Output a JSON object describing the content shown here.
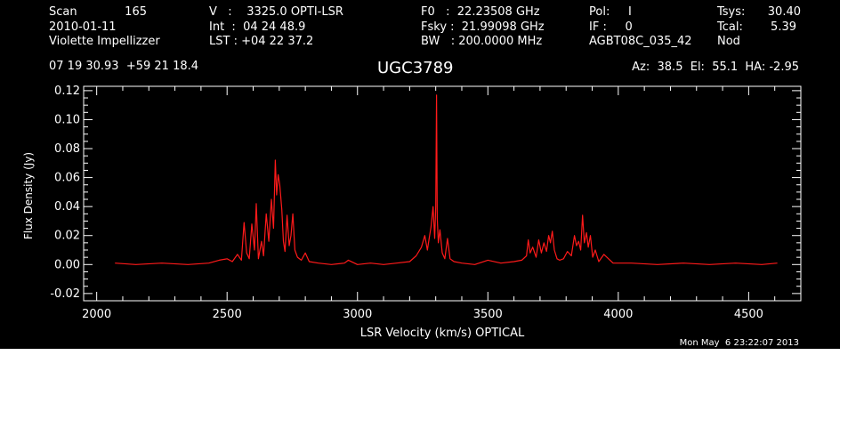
{
  "header": {
    "scan_label": "Scan",
    "scan_value": "165",
    "date": "2010-01-11",
    "observer": "Violette Impellizzer",
    "coords": "07 19 30.93  +59 21 18.4",
    "v_line": "V   :    3325.0 OPTI-LSR",
    "int_line": "Int  :  04 24 48.9",
    "lst_line": "LST : +04 22 37.2",
    "f0_line": "F0   :  22.23508 GHz",
    "fsky_line": "Fsky :  21.99098 GHz",
    "bw_line": "BW   : 200.0000 MHz",
    "pol_line": "Pol:     I",
    "if_line": "IF :     0",
    "project": "AGBT08C_035_42",
    "tsys_label": "Tsys:",
    "tsys_value": "30.40",
    "tcal_label": "Tcal:",
    "tcal_value": "5.39",
    "nod": "Nod",
    "source": "UGC3789",
    "pointing": "Az:  38.5  El:  55.1  HA: -2.95",
    "timestamp": "Mon May  6 23:22:07 2013"
  },
  "colors": {
    "background": "#000000",
    "foreground": "#ffffff",
    "trace": "#ff1a1a"
  },
  "chart_data": {
    "type": "line",
    "title": "UGC3789",
    "xlabel": "LSR Velocity (km/s) OPTICAL",
    "ylabel": "Flux Density (Jy)",
    "xlim": [
      1950,
      4700
    ],
    "ylim": [
      -0.025,
      0.123
    ],
    "xticks": [
      2000,
      2500,
      3000,
      3500,
      4000,
      4500
    ],
    "xtick_labels": [
      "2000",
      "2500",
      "3000",
      "3500",
      "4000",
      "4500"
    ],
    "yticks": [
      -0.02,
      0.0,
      0.02,
      0.04,
      0.06,
      0.08,
      0.1,
      0.12
    ],
    "ytick_labels": [
      "-0.02",
      "0.00",
      "0.02",
      "0.04",
      "0.06",
      "0.08",
      "0.10",
      "0.12"
    ],
    "grid": false,
    "series": [
      {
        "x": [
          2070,
          2150,
          2250,
          2350,
          2430,
          2470,
          2500,
          2520,
          2540,
          2555,
          2565,
          2575,
          2585,
          2595,
          2605,
          2612,
          2620,
          2632,
          2640,
          2650,
          2660,
          2670,
          2678,
          2685,
          2690,
          2696,
          2702,
          2710,
          2716,
          2722,
          2730,
          2738,
          2745,
          2752,
          2760,
          2770,
          2785,
          2800,
          2815,
          2850,
          2900,
          2950,
          2965,
          3000,
          3050,
          3100,
          3150,
          3200,
          3225,
          3245,
          3258,
          3268,
          3275,
          3282,
          3290,
          3296,
          3300,
          3303,
          3306,
          3310,
          3316,
          3325,
          3335,
          3345,
          3355,
          3370,
          3400,
          3450,
          3500,
          3550,
          3600,
          3630,
          3648,
          3655,
          3662,
          3672,
          3685,
          3695,
          3705,
          3715,
          3725,
          3733,
          3740,
          3747,
          3755,
          3765,
          3775,
          3790,
          3805,
          3820,
          3832,
          3840,
          3848,
          3856,
          3863,
          3870,
          3878,
          3885,
          3893,
          3902,
          3912,
          3925,
          3945,
          3980,
          4050,
          4150,
          4250,
          4350,
          4450,
          4550,
          4610
        ],
        "values": [
          0.001,
          0.0,
          0.001,
          0.0,
          0.001,
          0.003,
          0.004,
          0.002,
          0.007,
          0.003,
          0.029,
          0.008,
          0.004,
          0.028,
          0.01,
          0.042,
          0.004,
          0.016,
          0.006,
          0.035,
          0.016,
          0.045,
          0.025,
          0.072,
          0.048,
          0.062,
          0.055,
          0.038,
          0.016,
          0.009,
          0.034,
          0.013,
          0.02,
          0.035,
          0.01,
          0.005,
          0.003,
          0.008,
          0.002,
          0.001,
          0.0,
          0.001,
          0.003,
          0.0,
          0.001,
          0.0,
          0.001,
          0.002,
          0.006,
          0.012,
          0.02,
          0.01,
          0.018,
          0.026,
          0.04,
          0.018,
          0.04,
          0.117,
          0.032,
          0.015,
          0.024,
          0.008,
          0.004,
          0.018,
          0.004,
          0.002,
          0.001,
          0.0,
          0.003,
          0.001,
          0.002,
          0.003,
          0.006,
          0.017,
          0.008,
          0.012,
          0.005,
          0.017,
          0.008,
          0.015,
          0.009,
          0.02,
          0.015,
          0.023,
          0.01,
          0.004,
          0.003,
          0.004,
          0.009,
          0.006,
          0.02,
          0.013,
          0.016,
          0.01,
          0.034,
          0.015,
          0.022,
          0.012,
          0.02,
          0.005,
          0.01,
          0.002,
          0.007,
          0.001,
          0.001,
          0.0,
          0.001,
          0.0,
          0.001,
          0.0,
          0.001
        ]
      }
    ]
  }
}
